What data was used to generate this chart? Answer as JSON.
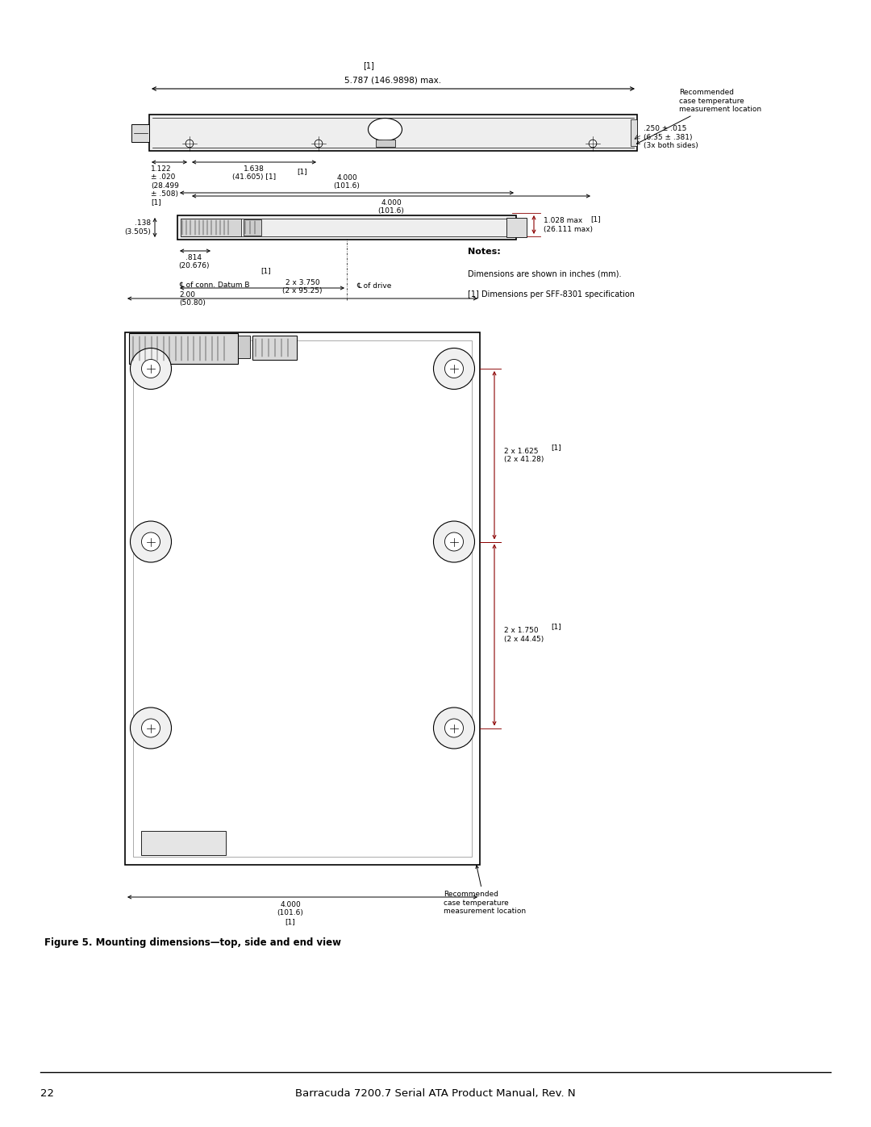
{
  "bg_color": "#ffffff",
  "line_color": "#000000",
  "dim_color": "#8B0000",
  "page_width": 10.8,
  "page_height": 13.97,
  "footer_text": "Barracuda 7200.7 Serial ATA Product Manual, Rev. N",
  "page_num": "22",
  "figure_caption": "Figure 5. Mounting dimensions—top, side and end view",
  "notes_title": "Notes:",
  "notes_lines": [
    "Dimensions are shown in inches (mm).",
    "[1] Dimensions per SFF-8301 specification"
  ]
}
